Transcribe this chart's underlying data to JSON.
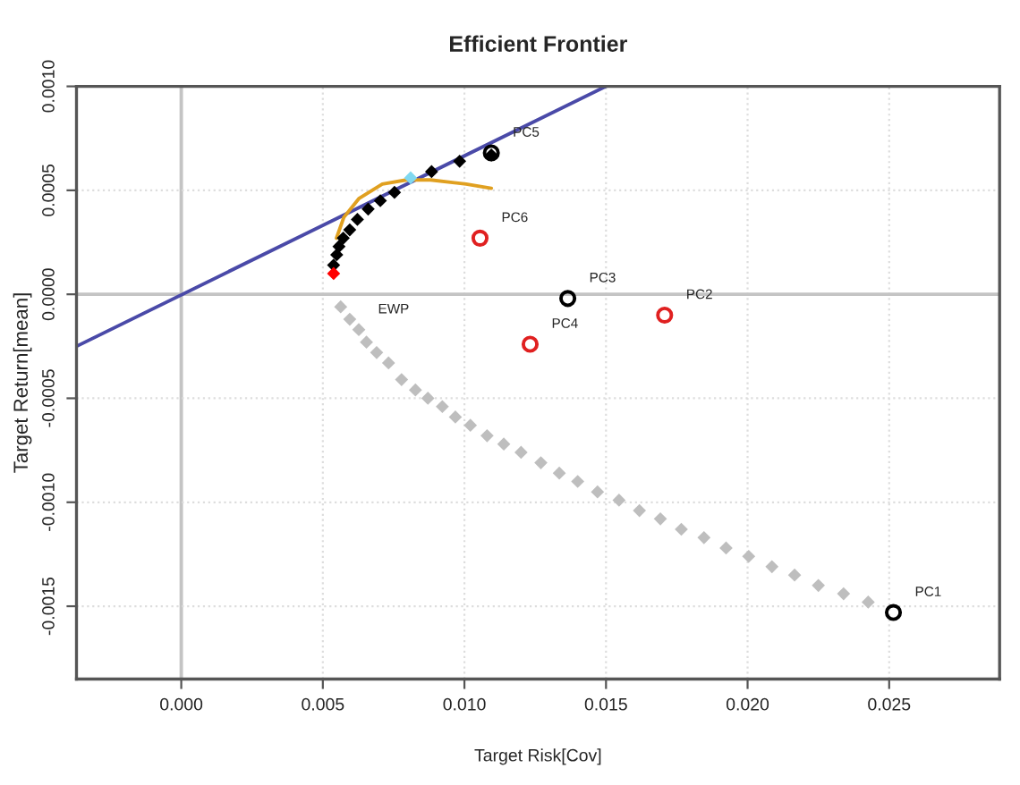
{
  "chart_data": {
    "type": "scatter",
    "title": "Efficient Frontier",
    "xlabel": "Target Risk[Cov]",
    "ylabel": "Target Return[mean]",
    "xlim": [
      -0.0037,
      0.0289
    ],
    "ylim": [
      -0.00185,
      0.001
    ],
    "xticks": [
      {
        "value": 0,
        "label": "0.000"
      },
      {
        "value": 0.005,
        "label": "0.005"
      },
      {
        "value": 0.01,
        "label": "0.010"
      },
      {
        "value": 0.015,
        "label": "0.015"
      },
      {
        "value": 0.02,
        "label": "0.020"
      },
      {
        "value": 0.025,
        "label": "0.025"
      }
    ],
    "yticks": [
      {
        "value": -0.0015,
        "label": "-0.0015"
      },
      {
        "value": -0.001,
        "label": "-0.0010"
      },
      {
        "value": -0.0005,
        "label": "-0.0005"
      },
      {
        "value": 0,
        "label": "0.0000"
      },
      {
        "value": 0.0005,
        "label": "0.0005"
      },
      {
        "value": 0.001,
        "label": "0.0010"
      }
    ],
    "grid": true,
    "legend": false,
    "series": [
      {
        "type": "line",
        "color": "#4a4aa8",
        "x": [
          -0.0037,
          0.015
        ],
        "values": [
          -0.00025,
          0.001
        ]
      },
      {
        "marker": "diamond",
        "color": "#bebebe",
        "x": [
          0.00563,
          0.00595,
          0.00627,
          0.00654,
          0.0069,
          0.00732,
          0.00778,
          0.00827,
          0.00871,
          0.00922,
          0.00968,
          0.01021,
          0.0108,
          0.01139,
          0.012,
          0.0127,
          0.01335,
          0.014,
          0.0147,
          0.01546,
          0.01618,
          0.01692,
          0.01766,
          0.01846,
          0.01924,
          0.02004,
          0.02086,
          0.02166,
          0.0225,
          0.02339,
          0.02426
        ],
        "values": [
          -6e-05,
          -0.00012,
          -0.00017,
          -0.00023,
          -0.00028,
          -0.00033,
          -0.00041,
          -0.00046,
          -0.0005,
          -0.00054,
          -0.00059,
          -0.00063,
          -0.00068,
          -0.00072,
          -0.00076,
          -0.00081,
          -0.00086,
          -0.0009,
          -0.00095,
          -0.00099,
          -0.00104,
          -0.00108,
          -0.00113,
          -0.00117,
          -0.00122,
          -0.00126,
          -0.00131,
          -0.00135,
          -0.0014,
          -0.00144,
          -0.00148
        ]
      },
      {
        "marker": "diamond",
        "color": "#000000",
        "x": [
          0.00538,
          0.00549,
          0.00557,
          0.00572,
          0.00595,
          0.00622,
          0.0066,
          0.00703,
          0.00753,
          0.0081,
          0.00884,
          0.00983,
          0.01095
        ],
        "values": [
          0.00014,
          0.00019,
          0.00023,
          0.00027,
          0.00031,
          0.00036,
          0.00041,
          0.00045,
          0.00049,
          null,
          0.00059,
          0.00064,
          0.00067
        ]
      },
      {
        "type": "line",
        "color": "#e0a020",
        "x": [
          0.00548,
          0.00574,
          0.00627,
          0.0071,
          0.00795,
          0.0088,
          0.01006,
          0.01095
        ],
        "values": [
          0.00027,
          0.00037,
          0.00046,
          0.00053,
          0.00055,
          0.00055,
          0.00053,
          0.00051
        ]
      },
      {
        "marker": "diamond",
        "color": "#ff0000",
        "x": [
          0.00538
        ],
        "values": [
          0.0001
        ]
      },
      {
        "marker": "diamond",
        "color": "#80d8f0",
        "x": [
          0.0081
        ],
        "values": [
          0.00056
        ]
      },
      {
        "marker": "circle",
        "color": "#000000",
        "x": [
          0.02515,
          0.01365,
          0.01095
        ],
        "values": [
          -0.00153,
          -2e-05,
          0.00068
        ]
      },
      {
        "marker": "circle",
        "color": "#e02020",
        "x": [
          0.01707,
          0.01232,
          0.01055
        ],
        "values": [
          -0.0001,
          -0.00024,
          0.00027
        ]
      }
    ],
    "annotations": [
      {
        "text": "PC5",
        "x": 0.01095,
        "y": 0.00068
      },
      {
        "text": "PC6",
        "x": 0.01055,
        "y": 0.00027
      },
      {
        "text": "PC3",
        "x": 0.01365,
        "y": -2e-05
      },
      {
        "text": "PC4",
        "x": 0.01232,
        "y": -0.00024
      },
      {
        "text": "PC2",
        "x": 0.01707,
        "y": -0.0001
      },
      {
        "text": "PC1",
        "x": 0.02515,
        "y": -0.00153
      },
      {
        "text": "EWP",
        "x": 0.00627,
        "y": -0.00017
      }
    ]
  }
}
